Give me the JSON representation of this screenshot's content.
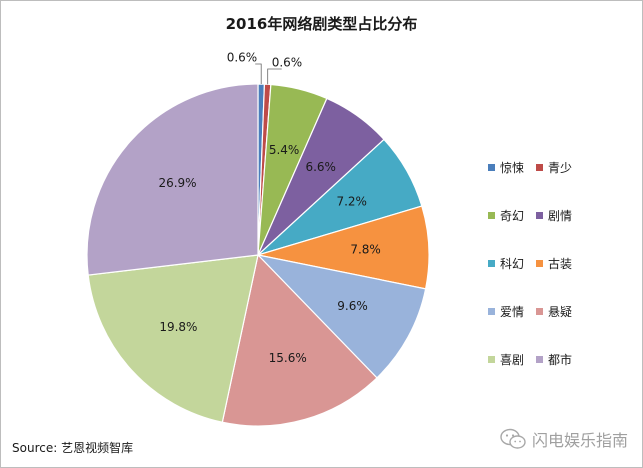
{
  "chart_data": {
    "type": "pie",
    "title": "2016年网络剧类型占比分布",
    "unit": "%",
    "categories": [
      "惊悚",
      "青少",
      "奇幻",
      "剧情",
      "科幻",
      "古装",
      "爱情",
      "悬疑",
      "喜剧",
      "都市"
    ],
    "values": [
      0.6,
      0.6,
      5.4,
      6.6,
      7.2,
      7.8,
      9.6,
      15.6,
      19.8,
      26.9
    ],
    "labels": [
      "0.6%",
      "0.6%",
      "5.4%",
      "6.6%",
      "7.2%",
      "7.8%",
      "9.6%",
      "15.6%",
      "19.8%",
      "26.9%"
    ],
    "colors": [
      "#4a7ebb",
      "#be4b48",
      "#98b954",
      "#7d60a0",
      "#46aac5",
      "#f69240",
      "#99b3db",
      "#d99694",
      "#c3d69b",
      "#b3a2c7"
    ],
    "start_angle_deg": 0,
    "direction": "clockwise",
    "legend": {
      "placement": "right",
      "columns": 2
    }
  },
  "footer": {
    "source": "Source: 艺恩视频智库",
    "watermark": "闪电娱乐指南",
    "watermark_icon": "wechat-icon"
  }
}
